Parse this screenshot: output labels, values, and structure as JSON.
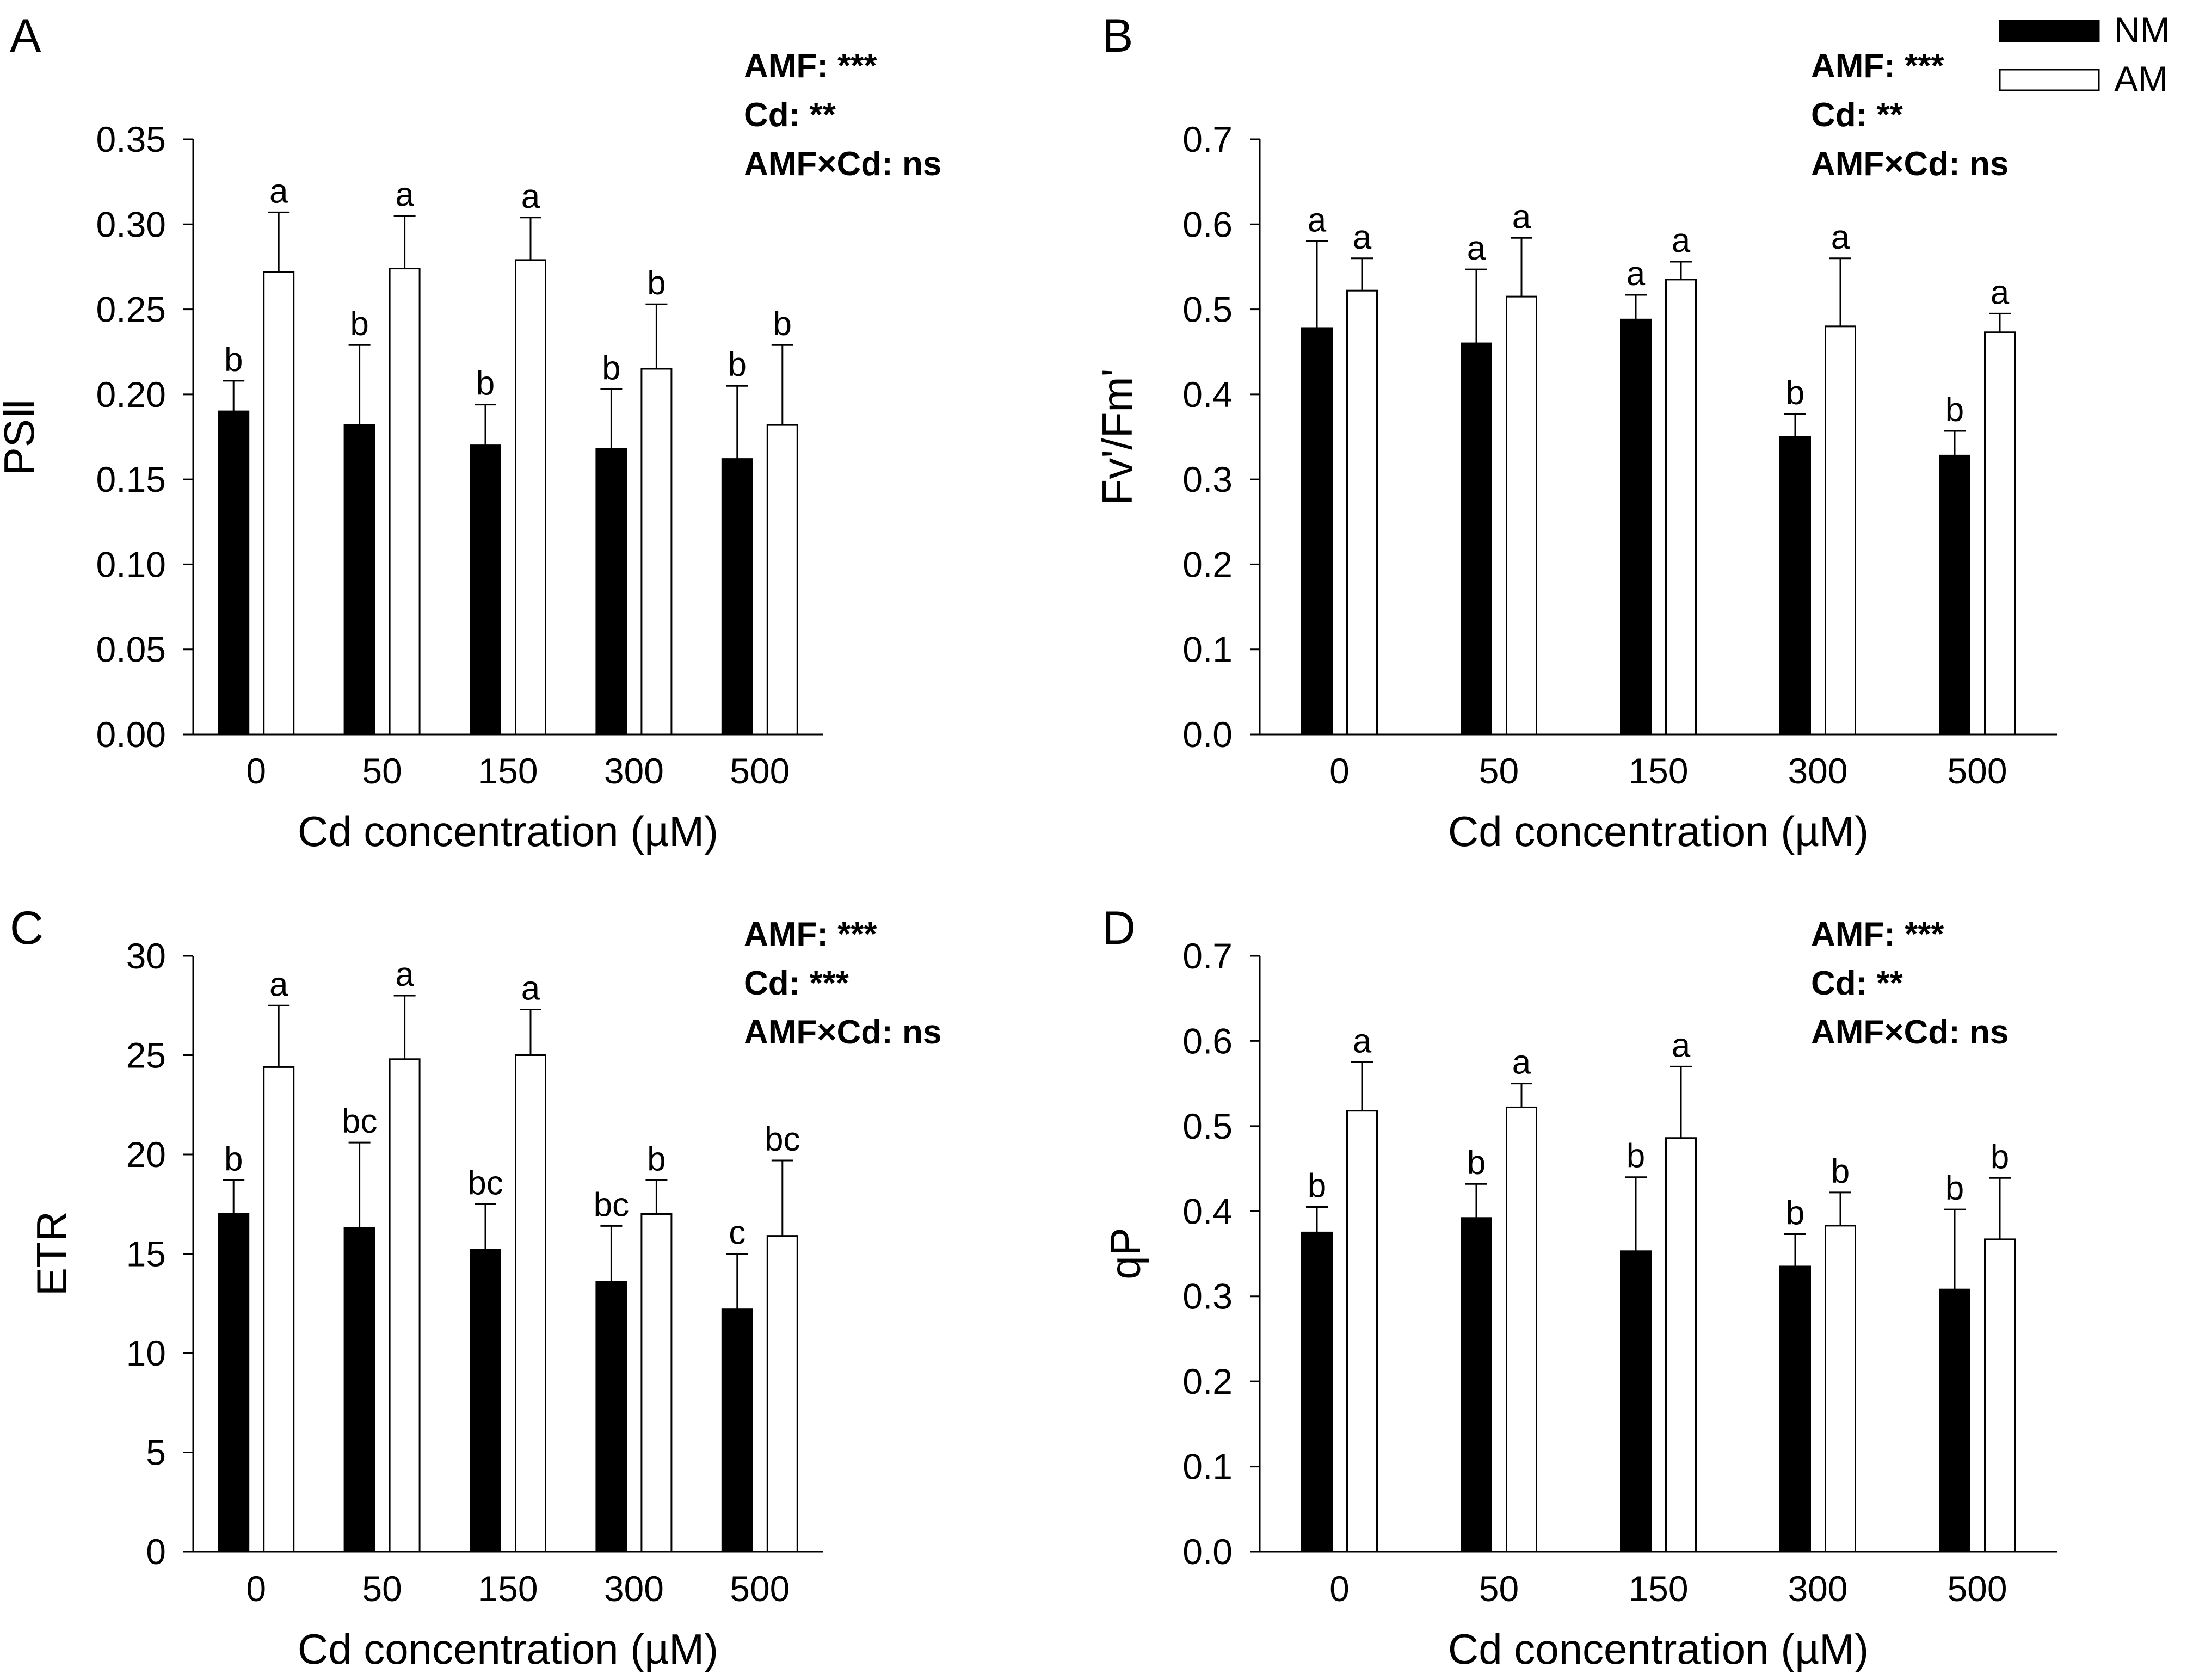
{
  "legend": {
    "entries": [
      {
        "label": "NM",
        "color": "#000000"
      },
      {
        "label": "AM",
        "color": "#ffffff"
      }
    ]
  },
  "chart_data": [
    {
      "panel": "A",
      "type": "bar",
      "title": "",
      "xlabel": "Cd concentration (µM)",
      "ylabel": "PSⅡ",
      "categories": [
        "0",
        "50",
        "150",
        "300",
        "500"
      ],
      "ylim": [
        0,
        0.35
      ],
      "ytick_step": 0.05,
      "ytick_labels": [
        "0.00",
        "0.05",
        "0.10",
        "0.15",
        "0.20",
        "0.25",
        "0.30",
        "0.35"
      ],
      "stats": [
        "AMF: ***",
        "Cd: **",
        "AMF×Cd: ns"
      ],
      "series": [
        {
          "name": "NM",
          "values": [
            0.19,
            0.182,
            0.17,
            0.168,
            0.162
          ],
          "errors": [
            0.018,
            0.047,
            0.024,
            0.035,
            0.043
          ],
          "labels": [
            "b",
            "b",
            "b",
            "b",
            "b"
          ]
        },
        {
          "name": "AM",
          "values": [
            0.272,
            0.274,
            0.279,
            0.215,
            0.182
          ],
          "errors": [
            0.035,
            0.031,
            0.025,
            0.038,
            0.047
          ],
          "labels": [
            "a",
            "a",
            "a",
            "b",
            "b"
          ]
        }
      ]
    },
    {
      "panel": "B",
      "type": "bar",
      "title": "",
      "xlabel": "Cd concentration (µM)",
      "ylabel": "Fv'/Fm'",
      "categories": [
        "0",
        "50",
        "150",
        "300",
        "500"
      ],
      "ylim": [
        0,
        0.7
      ],
      "ytick_step": 0.1,
      "ytick_labels": [
        "0.0",
        "0.1",
        "0.2",
        "0.3",
        "0.4",
        "0.5",
        "0.6",
        "0.7"
      ],
      "stats": [
        "AMF: ***",
        "Cd: **",
        "AMF×Cd: ns"
      ],
      "series": [
        {
          "name": "NM",
          "values": [
            0.478,
            0.46,
            0.488,
            0.35,
            0.328
          ],
          "errors": [
            0.102,
            0.087,
            0.029,
            0.027,
            0.029
          ],
          "labels": [
            "a",
            "a",
            "a",
            "b",
            "b"
          ]
        },
        {
          "name": "AM",
          "values": [
            0.522,
            0.515,
            0.535,
            0.48,
            0.473
          ],
          "errors": [
            0.038,
            0.069,
            0.021,
            0.08,
            0.022
          ],
          "labels": [
            "a",
            "a",
            "a",
            "a",
            "a"
          ]
        }
      ]
    },
    {
      "panel": "C",
      "type": "bar",
      "title": "",
      "xlabel": "Cd concentration (µM)",
      "ylabel": "ETR",
      "categories": [
        "0",
        "50",
        "150",
        "300",
        "500"
      ],
      "ylim": [
        0,
        30
      ],
      "ytick_step": 5,
      "ytick_labels": [
        "0",
        "5",
        "10",
        "15",
        "20",
        "25",
        "30"
      ],
      "stats": [
        "AMF: ***",
        "Cd: ***",
        "AMF×Cd: ns"
      ],
      "series": [
        {
          "name": "NM",
          "values": [
            17.0,
            16.3,
            15.2,
            13.6,
            12.2
          ],
          "errors": [
            1.7,
            4.3,
            2.3,
            2.8,
            2.8
          ],
          "labels": [
            "b",
            "bc",
            "bc",
            "bc",
            "c"
          ]
        },
        {
          "name": "AM",
          "values": [
            24.4,
            24.8,
            25.0,
            17.0,
            15.9
          ],
          "errors": [
            3.1,
            3.2,
            2.3,
            1.7,
            3.8
          ],
          "labels": [
            "a",
            "a",
            "a",
            "b",
            "bc"
          ]
        }
      ]
    },
    {
      "panel": "D",
      "type": "bar",
      "title": "",
      "xlabel": "Cd concentration (µM)",
      "ylabel": "qP",
      "categories": [
        "0",
        "50",
        "150",
        "300",
        "500"
      ],
      "ylim": [
        0,
        0.7
      ],
      "ytick_step": 0.1,
      "ytick_labels": [
        "0.0",
        "0.1",
        "0.2",
        "0.3",
        "0.4",
        "0.5",
        "0.6",
        "0.7"
      ],
      "stats": [
        "AMF: ***",
        "Cd: **",
        "AMF×Cd: ns"
      ],
      "series": [
        {
          "name": "NM",
          "values": [
            0.375,
            0.392,
            0.353,
            0.335,
            0.308
          ],
          "errors": [
            0.03,
            0.04,
            0.087,
            0.038,
            0.094
          ],
          "labels": [
            "b",
            "b",
            "b",
            "b",
            "b"
          ]
        },
        {
          "name": "AM",
          "values": [
            0.518,
            0.522,
            0.486,
            0.383,
            0.367
          ],
          "errors": [
            0.057,
            0.028,
            0.084,
            0.039,
            0.072
          ],
          "labels": [
            "a",
            "a",
            "a",
            "b",
            "b"
          ]
        }
      ]
    }
  ]
}
